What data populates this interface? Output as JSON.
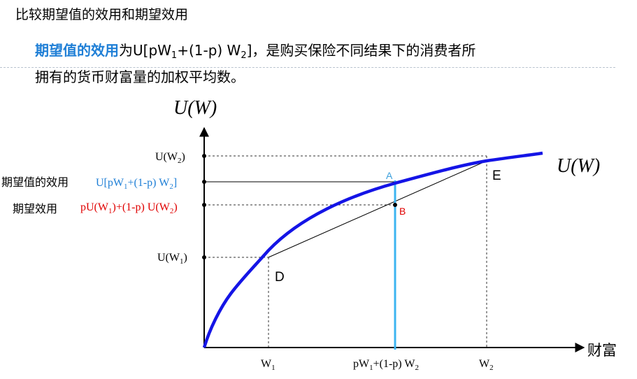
{
  "slide": {
    "title": "比较期望值的效用和期望效用",
    "intro": {
      "highlight": "期望值的效用",
      "formula_parts": [
        "为U[pW",
        "1",
        "+(1-p) W",
        "2",
        "]，是购买保险不同结果下的消费者所"
      ],
      "line2": "拥有的货币财富量的加权平均数。"
    }
  },
  "diagram": {
    "y_axis_label": "U(W)",
    "x_axis_label": "财富",
    "curve_label": "U(W)",
    "y_ticks": [
      {
        "base": "U(W",
        "sub": "2",
        "close": ")"
      },
      {
        "base": "U(W",
        "sub": "1",
        "close": ")"
      }
    ],
    "x_ticks": [
      {
        "base": "W",
        "sub": "1",
        "tail": ""
      },
      {
        "base": "pW",
        "sub": "1",
        "tail": "+(1-p) W",
        "sub2": "2"
      },
      {
        "base": "W",
        "sub": "2",
        "tail": ""
      }
    ],
    "utility_of_ev": {
      "name": "期望值的效用",
      "formula": [
        "U[pW",
        "1",
        "+(1-p) W",
        "2",
        "]"
      ],
      "color": "#1f7fd6"
    },
    "expected_utility": {
      "name": "期望效用",
      "formula": [
        "pU(W",
        "1",
        ")+(1-p) U(W",
        "2",
        ")"
      ],
      "color": "#e00000"
    },
    "points": {
      "A": "A",
      "B": "B",
      "D": "D",
      "E": "E"
    },
    "colors": {
      "curve": "#1414e6",
      "vertical_line": "#3cb4f0",
      "label_A": "#3ca0dc",
      "label_B": "#e00000"
    }
  }
}
